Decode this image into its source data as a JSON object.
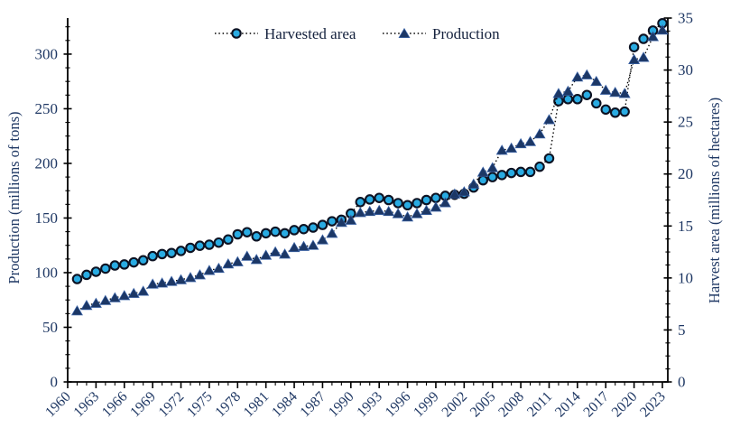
{
  "chart_data": {
    "type": "line",
    "title": "",
    "grid": false,
    "legend_position": "top-center",
    "legend": [
      "Harvested area",
      "Production"
    ],
    "x_years": [
      1961,
      1962,
      1963,
      1964,
      1965,
      1966,
      1967,
      1968,
      1969,
      1970,
      1971,
      1972,
      1973,
      1974,
      1975,
      1976,
      1977,
      1978,
      1979,
      1980,
      1981,
      1982,
      1983,
      1984,
      1985,
      1986,
      1987,
      1988,
      1989,
      1990,
      1991,
      1992,
      1993,
      1994,
      1995,
      1996,
      1997,
      1998,
      1999,
      2000,
      2001,
      2002,
      2003,
      2004,
      2005,
      2006,
      2007,
      2008,
      2009,
      2010,
      2011,
      2012,
      2013,
      2014,
      2015,
      2016,
      2017,
      2018,
      2019,
      2020,
      2021,
      2022,
      2023
    ],
    "x_axis": {
      "tick_labels": [
        "1960",
        "1963",
        "1966",
        "1969",
        "1972",
        "1975",
        "1978",
        "1981",
        "1984",
        "1987",
        "1990",
        "1993",
        "1996",
        "1999",
        "2002",
        "2005",
        "2008",
        "2011",
        "2014",
        "2017",
        "2020",
        "2023"
      ],
      "major_tick_step_years": 3,
      "minor_tick_step_years": 1,
      "label_rotation_deg": -45
    },
    "left_axis": {
      "label": "Production (millions of tons)",
      "ticks": [
        0,
        50,
        100,
        150,
        200,
        250,
        300
      ],
      "minor_step": 12.5,
      "range": [
        0,
        333
      ]
    },
    "right_axis": {
      "label": "Harvest area (millions of hectares)",
      "ticks": [
        0,
        5,
        10,
        15,
        20,
        25,
        30,
        35
      ],
      "minor_step": 1.25,
      "range": [
        0,
        35
      ]
    },
    "series": [
      {
        "name": "Harvested area",
        "axis": "right",
        "marker": "circle",
        "marker_fill": "#29ABE2",
        "marker_edge": "#0d1222",
        "line_style": "dotted",
        "line_color": "#000000",
        "values": [
          9.9,
          10.3,
          10.6,
          10.9,
          11.2,
          11.3,
          11.5,
          11.7,
          12.1,
          12.3,
          12.4,
          12.6,
          12.9,
          13.1,
          13.2,
          13.4,
          13.7,
          14.2,
          14.4,
          14.0,
          14.3,
          14.45,
          14.3,
          14.6,
          14.7,
          14.85,
          15.1,
          15.45,
          15.6,
          16.2,
          17.3,
          17.55,
          17.7,
          17.5,
          17.2,
          17.0,
          17.2,
          17.5,
          17.7,
          17.9,
          18.0,
          18.1,
          18.7,
          19.4,
          19.7,
          19.9,
          20.1,
          20.2,
          20.2,
          20.7,
          21.5,
          27.0,
          27.2,
          27.2,
          27.6,
          26.8,
          26.2,
          25.9,
          26.0,
          32.2,
          33.0,
          33.8,
          34.5
        ]
      },
      {
        "name": "Production",
        "axis": "left",
        "marker": "triangle",
        "marker_fill": "#1C3765",
        "marker_edge": "#3A63A8",
        "line_style": "dotted",
        "line_color": "#000000",
        "values": [
          65,
          70,
          72,
          74.5,
          77,
          79,
          81,
          83,
          89.5,
          90.5,
          92,
          93.5,
          95.5,
          98,
          102,
          104,
          108,
          110,
          115,
          112,
          116,
          119,
          117,
          123,
          124,
          125,
          130,
          136,
          146,
          148,
          155,
          156,
          157,
          156,
          154,
          151,
          154,
          157,
          160,
          164,
          172,
          174,
          181,
          192,
          196,
          212,
          214,
          218,
          220,
          227,
          240,
          264,
          266,
          279,
          281,
          275,
          267,
          265,
          264,
          295,
          297,
          316,
          322
        ]
      }
    ],
    "colors": {
      "text": "#1F3864",
      "axis_line": "#000000",
      "background": "#FFFFFF"
    }
  }
}
